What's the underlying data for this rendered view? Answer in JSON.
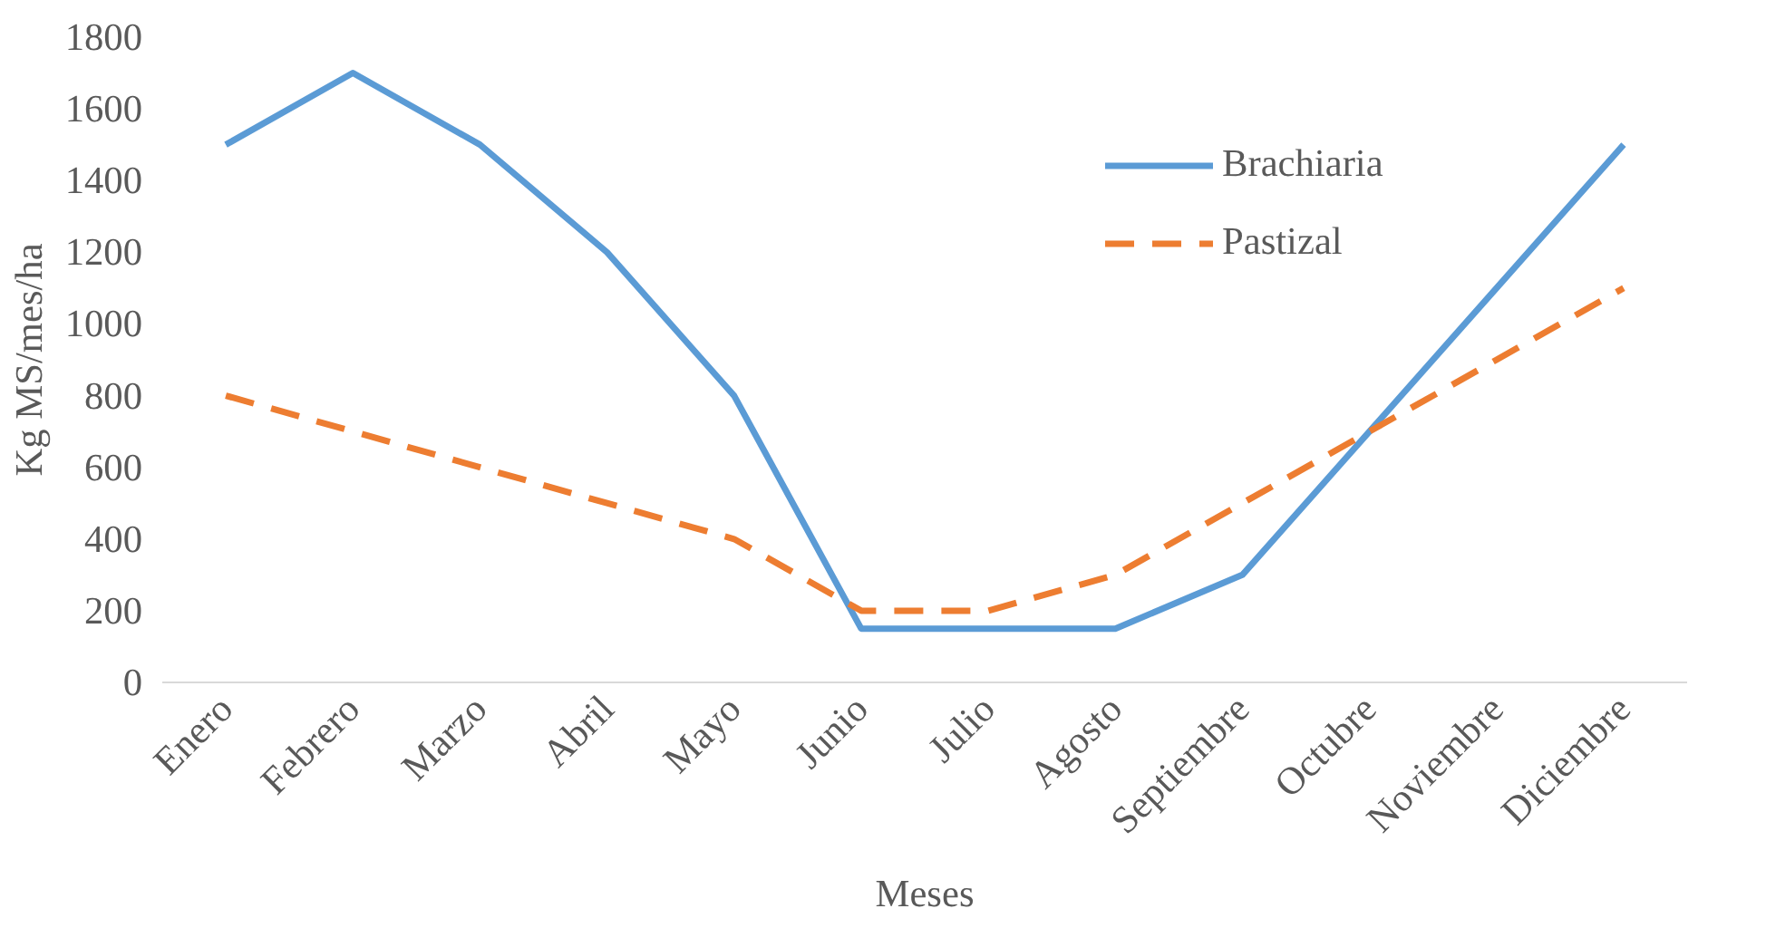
{
  "chart_data": {
    "type": "line",
    "xlabel": "Meses",
    "ylabel": "Kg MS/mes/ha",
    "categories": [
      "Enero",
      "Febrero",
      "Marzo",
      "Abril",
      "Mayo",
      "Junio",
      "Julio",
      "Agosto",
      "Septiembre",
      "Octubre",
      "Noviembre",
      "Diciembre"
    ],
    "series": [
      {
        "name": "Brachiaria",
        "color": "#5b9bd5",
        "line_style": "solid",
        "values": [
          1500,
          1700,
          1500,
          1200,
          800,
          150,
          150,
          150,
          300,
          700,
          1100,
          1500
        ]
      },
      {
        "name": "Pastizal",
        "color": "#ed7d31",
        "line_style": "dashed",
        "values": [
          800,
          700,
          600,
          500,
          400,
          200,
          200,
          300,
          500,
          700,
          900,
          1100
        ]
      }
    ],
    "ylim": [
      0,
      1800
    ],
    "yticks": [
      0,
      200,
      400,
      600,
      800,
      1000,
      1200,
      1400,
      1600,
      1800
    ],
    "grid": false,
    "legend": "top right",
    "marker": "none"
  }
}
